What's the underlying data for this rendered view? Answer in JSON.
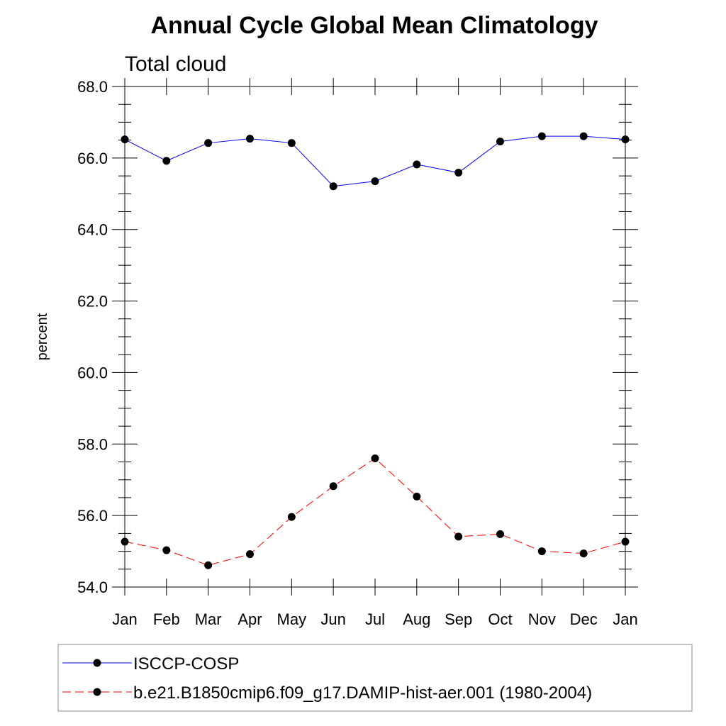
{
  "chart_data": {
    "type": "line",
    "title": "Annual Cycle Global Mean Climatology",
    "subtitle": "Total cloud",
    "xlabel": "",
    "ylabel": "percent",
    "categories": [
      "Jan",
      "Feb",
      "Mar",
      "Apr",
      "May",
      "Jun",
      "Jul",
      "Aug",
      "Sep",
      "Oct",
      "Nov",
      "Dec",
      "Jan"
    ],
    "ylim": [
      54.0,
      68.0
    ],
    "yticks": [
      "54.0",
      "56.0",
      "58.0",
      "60.0",
      "62.0",
      "64.0",
      "66.0",
      "68.0"
    ],
    "grid": false,
    "legend_position": "bottom",
    "series": [
      {
        "name": "ISCCP-COSP",
        "color": "#0000ff",
        "line_style": "solid",
        "marker": "filled-circle",
        "values": [
          66.52,
          65.92,
          66.42,
          66.54,
          66.42,
          65.21,
          65.35,
          65.82,
          65.59,
          66.46,
          66.61,
          66.61,
          66.52
        ]
      },
      {
        "name": "b.e21.B1850cmip6.f09_g17.DAMIP-hist-aer.001 (1980-2004)",
        "color": "#ff0000",
        "line_style": "dashed",
        "marker": "filled-circle",
        "values": [
          55.27,
          55.03,
          54.61,
          54.92,
          55.96,
          56.82,
          57.6,
          56.53,
          55.41,
          55.48,
          55.0,
          54.94,
          55.27
        ]
      }
    ]
  }
}
